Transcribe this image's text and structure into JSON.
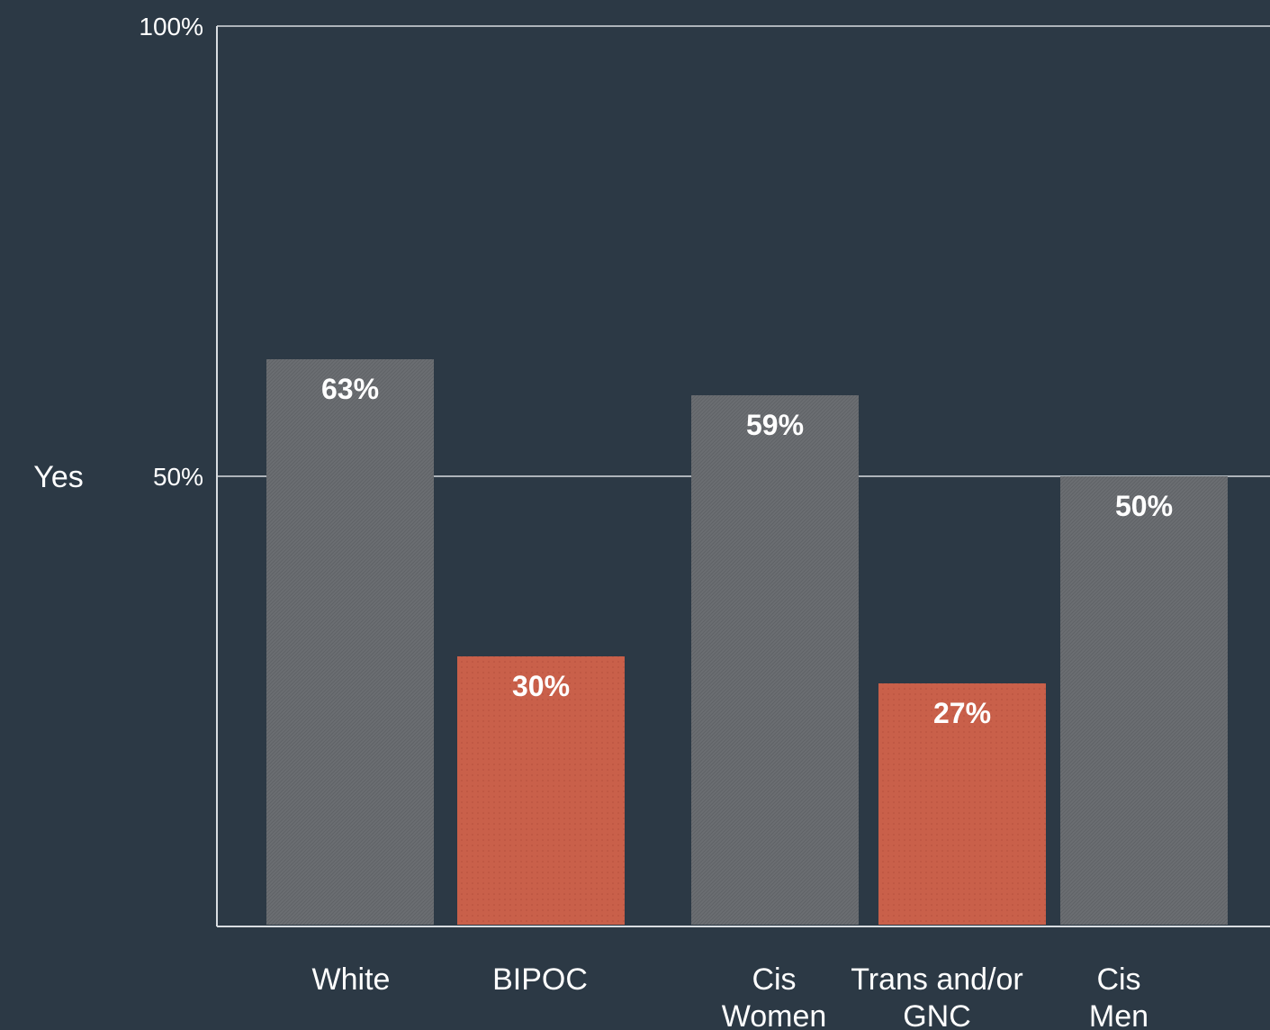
{
  "chart_data": {
    "type": "bar",
    "ylabel": "Yes",
    "ylim": [
      0,
      100
    ],
    "yticks": [
      {
        "value": 50,
        "label": "50%"
      },
      {
        "value": 100,
        "label": "100%"
      }
    ],
    "grid": true,
    "categories": [
      {
        "lines": [
          "White"
        ],
        "value": 63,
        "label": "63%",
        "group": "majority"
      },
      {
        "lines": [
          "BIPOC"
        ],
        "value": 30,
        "label": "30%",
        "group": "marginalized"
      },
      {
        "lines": [
          "Cis",
          "Women"
        ],
        "value": 59,
        "label": "59%",
        "group": "majority"
      },
      {
        "lines": [
          "Trans and/or",
          "GNC"
        ],
        "value": 27,
        "label": "27%",
        "group": "marginalized"
      },
      {
        "lines": [
          "Cis",
          "Men"
        ],
        "value": 50,
        "label": "50%",
        "group": "majority"
      }
    ],
    "colors": {
      "background": "#2c3945",
      "majority": "#6b6e72",
      "marginalized": "#c9604a",
      "axis": "#d9dde1",
      "text": "#ffffff"
    }
  }
}
